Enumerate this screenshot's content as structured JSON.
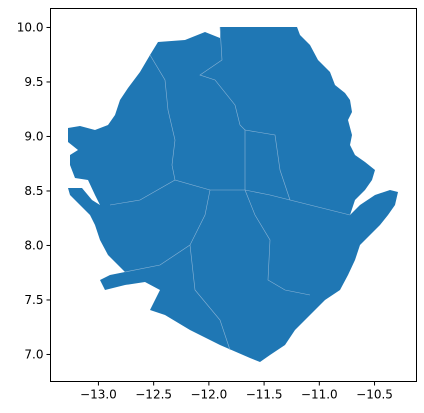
{
  "chart_data": {
    "type": "map",
    "color": "#1f77b4",
    "xlim": [
      -13.434,
      -10.12
    ],
    "ylim": [
      6.752,
      10.174
    ],
    "xticks": [
      {
        "value": -13,
        "label": "−13.0"
      },
      {
        "value": -12.5,
        "label": "−12.5"
      },
      {
        "value": -12,
        "label": "−12.0"
      },
      {
        "value": -11.5,
        "label": "−11.5"
      },
      {
        "value": -11,
        "label": "−11.0"
      },
      {
        "value": -10.5,
        "label": "−10.5"
      }
    ],
    "yticks": [
      {
        "value": 7,
        "label": "7.0"
      },
      7.5,
      {
        "value": 8,
        "label": "8.0"
      },
      8.5,
      {
        "value": 9,
        "label": "9.0"
      },
      9.5,
      {
        "value": 10,
        "label": "10.0"
      }
    ]
  }
}
